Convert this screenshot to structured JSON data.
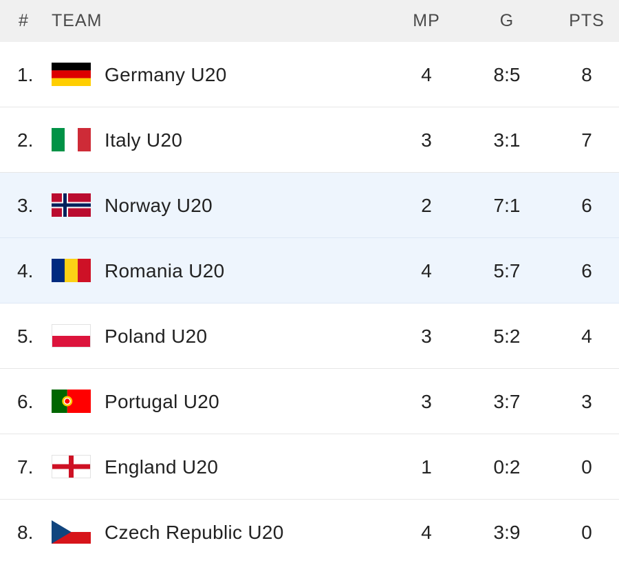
{
  "header": {
    "rank": "#",
    "team": "TEAM",
    "mp": "MP",
    "g": "G",
    "pts": "PTS"
  },
  "rows": [
    {
      "rank": "1.",
      "team": "Germany U20",
      "mp": "4",
      "g": "8:5",
      "pts": "8",
      "flag": "germany-flag-icon"
    },
    {
      "rank": "2.",
      "team": "Italy U20",
      "mp": "3",
      "g": "3:1",
      "pts": "7",
      "flag": "italy-flag-icon"
    },
    {
      "rank": "3.",
      "team": "Norway U20",
      "mp": "2",
      "g": "7:1",
      "pts": "6",
      "flag": "norway-flag-icon"
    },
    {
      "rank": "4.",
      "team": "Romania U20",
      "mp": "4",
      "g": "5:7",
      "pts": "6",
      "flag": "romania-flag-icon"
    },
    {
      "rank": "5.",
      "team": "Poland U20",
      "mp": "3",
      "g": "5:2",
      "pts": "4",
      "flag": "poland-flag-icon"
    },
    {
      "rank": "6.",
      "team": "Portugal U20",
      "mp": "3",
      "g": "3:7",
      "pts": "3",
      "flag": "portugal-flag-icon"
    },
    {
      "rank": "7.",
      "team": "England U20",
      "mp": "1",
      "g": "0:2",
      "pts": "0",
      "flag": "england-flag-icon"
    },
    {
      "rank": "8.",
      "team": "Czech Republic U20",
      "mp": "4",
      "g": "3:9",
      "pts": "0",
      "flag": "czech-republic-flag-icon"
    }
  ],
  "colors": {
    "highlight_row": "#eef5fd",
    "header_bg": "#f0f0f0"
  }
}
